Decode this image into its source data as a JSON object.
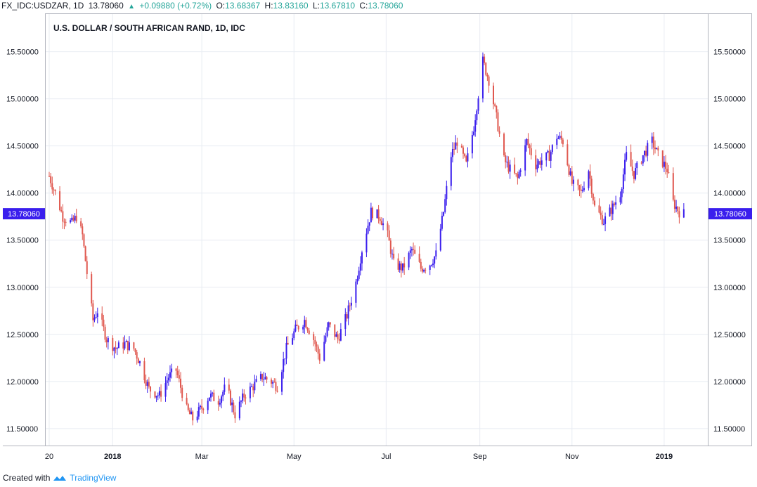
{
  "header": {
    "symbol": "FX_IDC:USDZAR, 1D",
    "last": "13.78060",
    "arrow": "▲",
    "change": "+0.09880 (+0.72%)",
    "o_label": "O:",
    "o_value": "13.68367",
    "h_label": "H:",
    "h_value": "13.83160",
    "l_label": "L:",
    "l_value": "13.67810",
    "c_label": "C:",
    "c_value": "13.78060"
  },
  "footer": {
    "created_with": "Created with",
    "brand": "TradingView",
    "logo_icon": "tradingview-logo-icon"
  },
  "colors": {
    "up": "#3a1eed",
    "down": "#e0584f",
    "badge": "#3a1eed",
    "grid": "#e8ecf2",
    "axis_text": "#131722"
  },
  "chart_data": {
    "type": "candlestick",
    "title": "U.S. DOLLAR / SOUTH AFRICAN RAND, 1D, IDC",
    "ylim": [
      11.32,
      15.9
    ],
    "grid": true,
    "y_ticks": [
      "15.50000",
      "15.00000",
      "14.50000",
      "14.00000",
      "13.50000",
      "13.00000",
      "12.50000",
      "12.00000",
      "11.50000"
    ],
    "x_tick_labels": [
      "20",
      "2018",
      "Mar",
      "May",
      "Jul",
      "Sep",
      "Nov",
      "2019"
    ],
    "last_price_label": "13.78060",
    "last_price": 13.7806,
    "close_path": [
      [
        "2017-11-20",
        14.18
      ],
      [
        "2017-11-24",
        14.0
      ],
      [
        "2017-11-29",
        13.75
      ],
      [
        "2017-12-05",
        13.68
      ],
      [
        "2017-12-08",
        13.75
      ],
      [
        "2017-12-12",
        13.55
      ],
      [
        "2017-12-15",
        13.15
      ],
      [
        "2017-12-19",
        12.65
      ],
      [
        "2017-12-22",
        12.75
      ],
      [
        "2017-12-28",
        12.45
      ],
      [
        "2018-01-03",
        12.35
      ],
      [
        "2018-01-09",
        12.4
      ],
      [
        "2018-01-15",
        12.35
      ],
      [
        "2018-01-19",
        12.2
      ],
      [
        "2018-01-25",
        11.92
      ],
      [
        "2018-02-01",
        11.85
      ],
      [
        "2018-02-07",
        12.05
      ],
      [
        "2018-02-12",
        12.12
      ],
      [
        "2018-02-19",
        11.7
      ],
      [
        "2018-02-23",
        11.6
      ],
      [
        "2018-03-01",
        11.72
      ],
      [
        "2018-03-06",
        11.85
      ],
      [
        "2018-03-12",
        11.8
      ],
      [
        "2018-03-17",
        11.95
      ],
      [
        "2018-03-23",
        11.65
      ],
      [
        "2018-03-29",
        11.85
      ],
      [
        "2018-04-04",
        11.95
      ],
      [
        "2018-04-10",
        12.05
      ],
      [
        "2018-04-16",
        12.0
      ],
      [
        "2018-04-20",
        11.95
      ],
      [
        "2018-04-26",
        12.35
      ],
      [
        "2018-05-02",
        12.55
      ],
      [
        "2018-05-08",
        12.65
      ],
      [
        "2018-05-14",
        12.45
      ],
      [
        "2018-05-18",
        12.25
      ],
      [
        "2018-05-24",
        12.6
      ],
      [
        "2018-05-30",
        12.45
      ],
      [
        "2018-06-05",
        12.7
      ],
      [
        "2018-06-11",
        13.05
      ],
      [
        "2018-06-15",
        13.4
      ],
      [
        "2018-06-21",
        13.8
      ],
      [
        "2018-06-27",
        13.75
      ],
      [
        "2018-07-02",
        13.55
      ],
      [
        "2018-07-06",
        13.25
      ],
      [
        "2018-07-12",
        13.2
      ],
      [
        "2018-07-18",
        13.4
      ],
      [
        "2018-07-24",
        13.2
      ],
      [
        "2018-07-30",
        13.25
      ],
      [
        "2018-08-03",
        13.35
      ],
      [
        "2018-08-08",
        13.8
      ],
      [
        "2018-08-13",
        14.4
      ],
      [
        "2018-08-17",
        14.55
      ],
      [
        "2018-08-23",
        14.3
      ],
      [
        "2018-08-28",
        14.7
      ],
      [
        "2018-09-03",
        15.4
      ],
      [
        "2018-09-07",
        15.2
      ],
      [
        "2018-09-12",
        14.8
      ],
      [
        "2018-09-17",
        14.35
      ],
      [
        "2018-09-21",
        14.25
      ],
      [
        "2018-09-26",
        14.15
      ],
      [
        "2018-10-02",
        14.55
      ],
      [
        "2018-10-08",
        14.3
      ],
      [
        "2018-10-12",
        14.35
      ],
      [
        "2018-10-17",
        14.4
      ],
      [
        "2018-10-22",
        14.6
      ],
      [
        "2018-10-26",
        14.55
      ],
      [
        "2018-11-01",
        14.1
      ],
      [
        "2018-11-07",
        14.0
      ],
      [
        "2018-11-12",
        14.25
      ],
      [
        "2018-11-16",
        13.85
      ],
      [
        "2018-11-22",
        13.7
      ],
      [
        "2018-11-28",
        13.85
      ],
      [
        "2018-12-03",
        14.0
      ],
      [
        "2018-12-07",
        14.4
      ],
      [
        "2018-12-12",
        14.2
      ],
      [
        "2018-12-18",
        14.4
      ],
      [
        "2018-12-24",
        14.55
      ],
      [
        "2018-12-28",
        14.4
      ],
      [
        "2019-01-03",
        14.25
      ],
      [
        "2019-01-07",
        13.9
      ],
      [
        "2019-01-11",
        13.8
      ],
      [
        "2019-01-14",
        13.78
      ]
    ]
  }
}
